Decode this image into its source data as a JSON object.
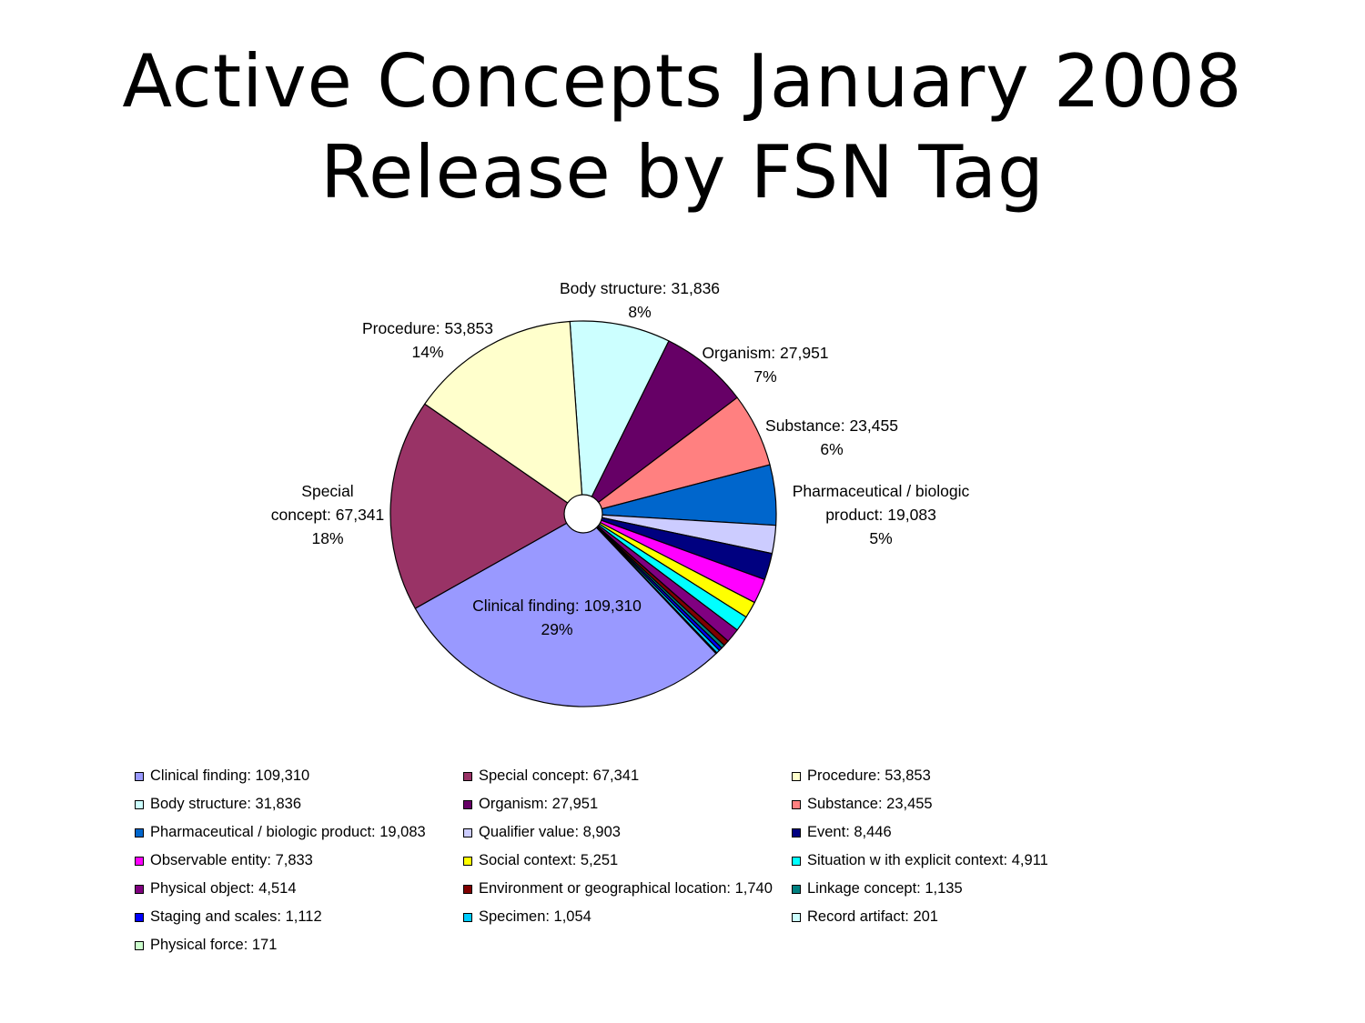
{
  "slide": {
    "title_line1": "Active Concepts January 2008",
    "title_line2": "Release by FSN Tag"
  },
  "chart_data": {
    "type": "pie",
    "title": "",
    "start_angle_deg": -4,
    "direction": "clockwise",
    "hole": true,
    "slices": [
      {
        "name": "Body structure",
        "value": 31836,
        "label": "Body structure: 31,836",
        "pct": "8%",
        "color": "#CCFFFF"
      },
      {
        "name": "Organism",
        "value": 27951,
        "label": "Organism: 27,951",
        "pct": "7%",
        "color": "#660066"
      },
      {
        "name": "Substance",
        "value": 23455,
        "label": "Substance: 23,455",
        "pct": "6%",
        "color": "#FF8080"
      },
      {
        "name": "Pharmaceutical / biologic product",
        "value": 19083,
        "label": "Pharmaceutical / biologic product: 19,083",
        "pct": "5%",
        "color": "#0066CC"
      },
      {
        "name": "Qualifier value",
        "value": 8903,
        "label": "Qualifier value: 8,903",
        "color": "#CCCCFF"
      },
      {
        "name": "Event",
        "value": 8446,
        "label": "Event: 8,446",
        "color": "#000080"
      },
      {
        "name": "Observable entity",
        "value": 7833,
        "label": "Observable entity: 7,833",
        "color": "#FF00FF"
      },
      {
        "name": "Social context",
        "value": 5251,
        "label": "Social context: 5,251",
        "color": "#FFFF00"
      },
      {
        "name": "Situation with explicit context",
        "value": 4911,
        "label": "Situation w ith explicit context: 4,911",
        "color": "#00FFFF"
      },
      {
        "name": "Physical object",
        "value": 4514,
        "label": "Physical object: 4,514",
        "color": "#800080"
      },
      {
        "name": "Environment or geographical location",
        "value": 1740,
        "label": "Environment or geographical location: 1,740",
        "color": "#800000"
      },
      {
        "name": "Linkage concept",
        "value": 1135,
        "label": "Linkage concept: 1,135",
        "color": "#008080"
      },
      {
        "name": "Staging and scales",
        "value": 1112,
        "label": "Staging and scales: 1,112",
        "color": "#0000FF"
      },
      {
        "name": "Specimen",
        "value": 1054,
        "label": "Specimen: 1,054",
        "color": "#00CCFF"
      },
      {
        "name": "Record artifact",
        "value": 201,
        "label": "Record artifact: 201",
        "color": "#CCFFFF"
      },
      {
        "name": "Physical force",
        "value": 171,
        "label": "Physical force: 171",
        "color": "#CCFFCC"
      },
      {
        "name": "Clinical finding",
        "value": 109310,
        "label": "Clinical finding: 109,310",
        "pct": "29%",
        "color": "#9999FF"
      },
      {
        "name": "Special concept",
        "value": 67341,
        "label": "Special concept: 67,341",
        "pct": "18%",
        "color": "#993366"
      },
      {
        "name": "Procedure",
        "value": 53853,
        "label": "Procedure: 53,853",
        "pct": "14%",
        "color": "#FFFFCC"
      }
    ],
    "slice_labels": [
      {
        "lines": [
          "Body structure: 31,836",
          "8%"
        ]
      },
      {
        "lines": [
          "Organism: 27,951",
          "7%"
        ]
      },
      {
        "lines": [
          "Substance: 23,455",
          "6%"
        ]
      },
      {
        "lines": [
          "Pharmaceutical / biologic",
          "product: 19,083",
          "5%"
        ]
      },
      {
        "lines": [
          "Clinical finding: 109,310",
          "29%"
        ]
      },
      {
        "lines": [
          "Special",
          "concept: 67,341",
          "18%"
        ]
      },
      {
        "lines": [
          "Procedure: 53,853",
          "14%"
        ]
      }
    ],
    "legend": [
      {
        "label": "Clinical finding: 109,310",
        "color": "#9999FF"
      },
      {
        "label": "Special concept: 67,341",
        "color": "#993366"
      },
      {
        "label": "Procedure: 53,853",
        "color": "#FFFFCC"
      },
      {
        "label": "Body structure: 31,836",
        "color": "#CCFFFF"
      },
      {
        "label": "Organism: 27,951",
        "color": "#660066"
      },
      {
        "label": "Substance: 23,455",
        "color": "#FF8080"
      },
      {
        "label": "Pharmaceutical / biologic product: 19,083",
        "color": "#0066CC"
      },
      {
        "label": "Qualifier value: 8,903",
        "color": "#CCCCFF"
      },
      {
        "label": "Event: 8,446",
        "color": "#000080"
      },
      {
        "label": "Observable entity: 7,833",
        "color": "#FF00FF"
      },
      {
        "label": "Social context: 5,251",
        "color": "#FFFF00"
      },
      {
        "label": "Situation w ith explicit context: 4,911",
        "color": "#00FFFF"
      },
      {
        "label": "Physical object: 4,514",
        "color": "#800080"
      },
      {
        "label": "Environment or geographical location: 1,740",
        "color": "#800000"
      },
      {
        "label": "Linkage concept: 1,135",
        "color": "#008080"
      },
      {
        "label": "Staging and scales: 1,112",
        "color": "#0000FF"
      },
      {
        "label": "Specimen: 1,054",
        "color": "#00CCFF"
      },
      {
        "label": "Record artifact: 201",
        "color": "#CCFFFF"
      },
      {
        "label": "Physical force: 171",
        "color": "#CCFFCC"
      }
    ],
    "legend_placement": "bottom"
  }
}
